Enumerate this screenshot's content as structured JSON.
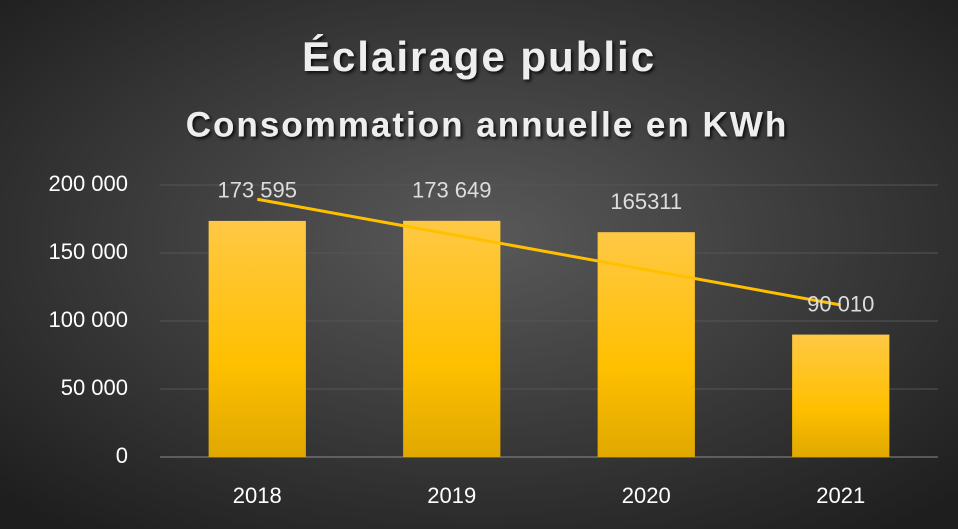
{
  "chart_data": {
    "type": "bar",
    "title": "Éclairage public",
    "subtitle": "Consommation annuelle en KWh",
    "categories": [
      "2018",
      "2019",
      "2020",
      "2021"
    ],
    "values": [
      173595,
      173649,
      165311,
      90010
    ],
    "value_labels": [
      "173 595",
      "173 649",
      "165311",
      "90 010"
    ],
    "color": "#ffc000",
    "ylim": [
      0,
      200000
    ],
    "yticks": [
      0,
      {
        "value": 50000,
        "label": "50 000"
      },
      {
        "value": 100000,
        "label": "100 000"
      },
      {
        "value": 150000,
        "label": "150 000"
      },
      {
        "value": 200000,
        "label": "200 000"
      }
    ],
    "grid": true,
    "trendline": {
      "type": "linear",
      "color": "#ffc000"
    }
  }
}
